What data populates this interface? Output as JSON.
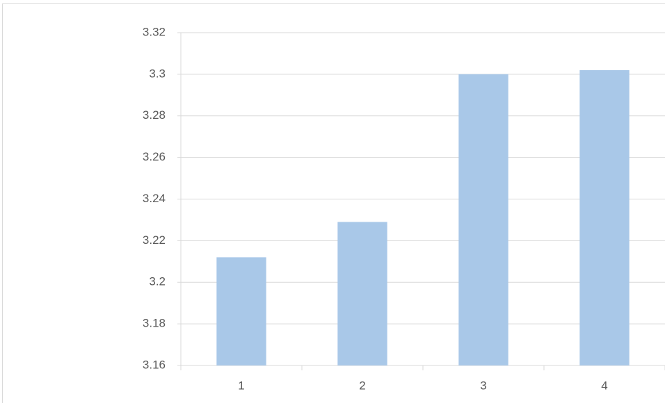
{
  "chart_data": {
    "type": "bar",
    "categories": [
      "1",
      "2",
      "3",
      "4"
    ],
    "values": [
      3.212,
      3.229,
      3.3,
      3.302
    ],
    "color": "#a9c8e8",
    "ylim": [
      3.16,
      3.32
    ],
    "yticks": [
      3.16,
      3.18,
      3.2,
      3.22,
      3.24,
      3.26,
      3.28,
      3.3,
      3.32
    ],
    "grid": true
  }
}
